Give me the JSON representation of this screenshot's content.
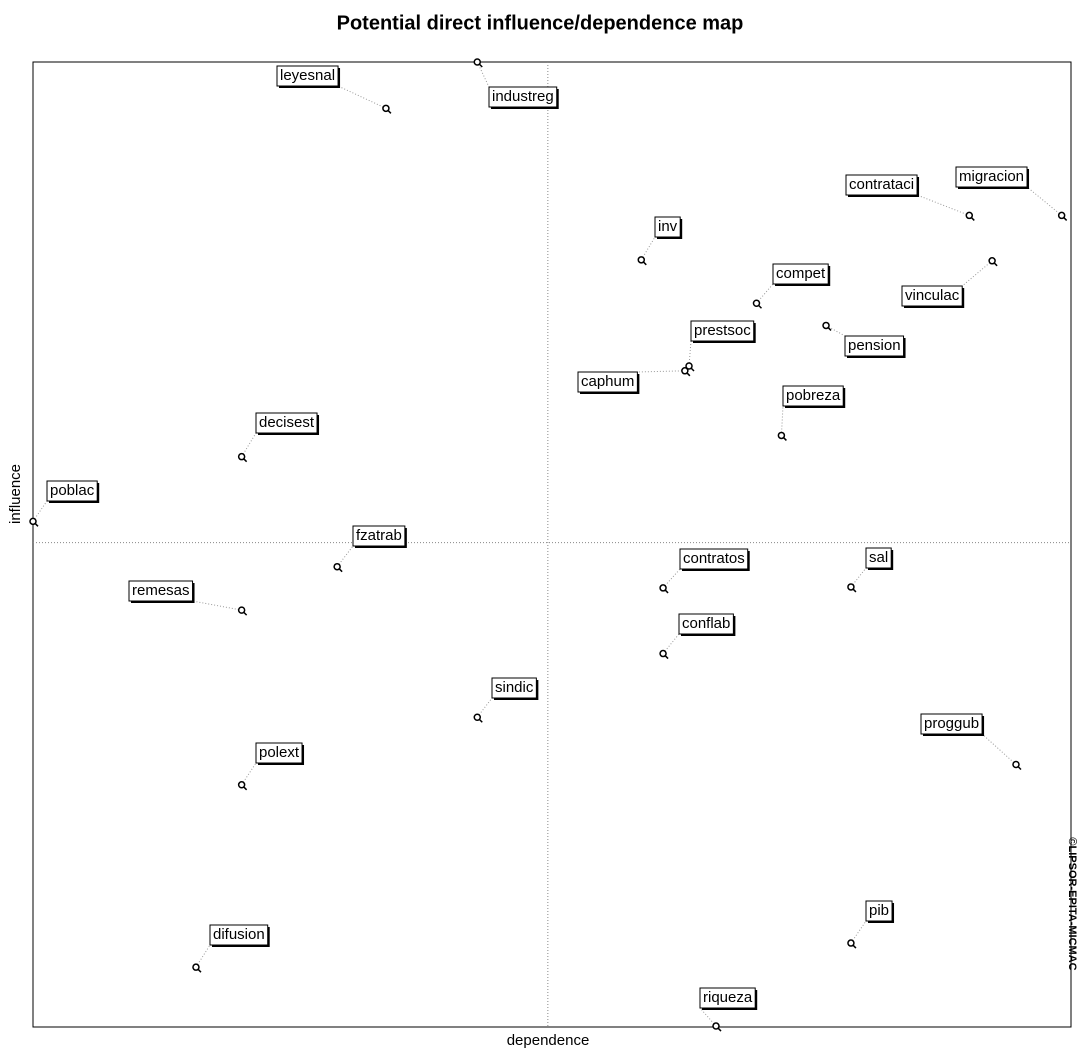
{
  "chart_data": {
    "type": "scatter",
    "title": "Potential direct influence/dependence map",
    "xlabel": "dependence",
    "ylabel": "influence",
    "credit": "©LIPSOR-EPITA-MICMAC",
    "xlim": [
      0,
      100
    ],
    "ylim": [
      0,
      100
    ],
    "xline": 49.6,
    "yline": 50.2,
    "color": "#000000",
    "labels": [
      "leyesnal",
      "industreg",
      "contrataci",
      "migracion",
      "inv",
      "compet",
      "vinculac",
      "prestsoc",
      "pension",
      "caphum",
      "pobreza",
      "decisest",
      "poblac",
      "fzatrab",
      "contratos",
      "sal",
      "remesas",
      "conflab",
      "sindic",
      "proggub",
      "polext",
      "pib",
      "difusion",
      "riqueza"
    ],
    "x": [
      34.0,
      42.8,
      90.2,
      99.1,
      58.6,
      69.7,
      92.4,
      63.2,
      76.4,
      62.8,
      72.1,
      20.1,
      0,
      29.3,
      60.7,
      78.8,
      20.1,
      60.7,
      42.8,
      94.7,
      20.1,
      78.8,
      15.7,
      65.8
    ],
    "y": [
      95.2,
      100,
      84.1,
      84.1,
      79.5,
      75.0,
      79.4,
      68.5,
      72.7,
      68.0,
      61.3,
      59.1,
      52.4,
      47.7,
      45.5,
      45.6,
      43.2,
      38.7,
      32.1,
      27.2,
      25.1,
      8.7,
      6.2,
      0.1
    ]
  }
}
